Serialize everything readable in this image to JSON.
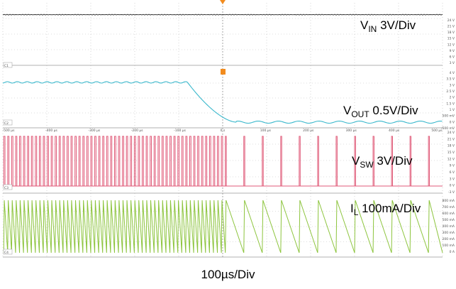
{
  "chart_data": {
    "type": "line",
    "timebase": "100µs/Div",
    "x_unit": "µs",
    "x_range": [
      -500,
      500
    ],
    "time_ticks": [
      "-500 µs",
      "-400 µs",
      "-300 µs",
      "-200 µs",
      "-100 µs",
      "0 s",
      "100 µs",
      "200 µs",
      "300 µs",
      "400 µs",
      "500 µs"
    ],
    "trigger_time_us": 0,
    "channels": [
      {
        "id": "C1",
        "name_main": "V",
        "name_sub": "IN",
        "scale": "3V/Div",
        "color": "#333333",
        "axis_ticks": [
          "24 V",
          "21 V",
          "18 V",
          "15 V",
          "12 V",
          "9 V",
          "6 V",
          "3 V"
        ],
        "description": "flat DC input voltage",
        "level_fraction": 0.97
      },
      {
        "id": "C2",
        "name_main": "V",
        "name_sub": "OUT",
        "scale": "0.5V/Div",
        "color": "#3ab8cc",
        "axis_ticks": [
          "4 V",
          "3.5 V",
          "3 V",
          "2.5 V",
          "2 V",
          "1.5 V",
          "1 V",
          "500 mV",
          "0 V",
          "-500 mV"
        ],
        "before_level_v": 3.3,
        "after_level_v": 0.0,
        "fall_start_us": -80,
        "fall_end_us": 30
      },
      {
        "id": "C3",
        "name_main": "V",
        "name_sub": "SW",
        "scale": "3V/Div",
        "color": "#e05a78",
        "axis_ticks": [
          "24 V",
          "21 V",
          "18 V",
          "15 V",
          "12 V",
          "9 V",
          "6 V",
          "3 V",
          "0 V",
          "-3 V"
        ],
        "pulse_period_before_us": 9,
        "pulse_period_after_us": 42,
        "pulse_height_v": 22
      },
      {
        "id": "C4",
        "name_main": "I",
        "name_sub": "L",
        "scale": "100mA/Div",
        "color": "#8cc43c",
        "axis_ticks": [
          "800 mA",
          "700 mA",
          "600 mA",
          "500 mA",
          "400 mA",
          "300 mA",
          "200 mA",
          "100 mA",
          "0 A"
        ],
        "period_before_us": 9,
        "period_after_us": 42,
        "peak_ma": 780
      }
    ],
    "trigger_markers": [
      "T",
      "T"
    ]
  },
  "colors": {
    "grid": "#bbbbbb",
    "trigger": "#f28c1e",
    "pane_border": "#999999"
  }
}
